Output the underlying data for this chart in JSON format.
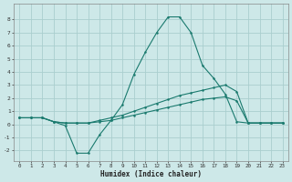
{
  "xlabel": "Humidex (Indice chaleur)",
  "bg_color": "#cde8e8",
  "grid_color": "#aacece",
  "line_color": "#1a7a6e",
  "xlim": [
    -0.5,
    23.5
  ],
  "ylim": [
    -2.8,
    9.2
  ],
  "xticks": [
    0,
    1,
    2,
    3,
    4,
    5,
    6,
    7,
    8,
    9,
    10,
    11,
    12,
    13,
    14,
    15,
    16,
    17,
    18,
    19,
    20,
    21,
    22,
    23
  ],
  "yticks": [
    -2,
    -1,
    0,
    1,
    2,
    3,
    4,
    5,
    6,
    7,
    8
  ],
  "line1_x": [
    0,
    1,
    2,
    3,
    4,
    5,
    6,
    7,
    8,
    9,
    10,
    11,
    12,
    13,
    14,
    15,
    16,
    17,
    18,
    19,
    20,
    21,
    22,
    23
  ],
  "line1_y": [
    0.5,
    0.5,
    0.5,
    0.2,
    -0.1,
    -2.2,
    -2.2,
    -0.8,
    0.3,
    1.5,
    3.8,
    5.5,
    7.0,
    8.2,
    8.2,
    7.0,
    4.5,
    3.5,
    2.3,
    0.2,
    0.1,
    0.1,
    0.1,
    0.1
  ],
  "line2_x": [
    0,
    1,
    2,
    3,
    4,
    5,
    6,
    7,
    8,
    9,
    10,
    11,
    12,
    13,
    14,
    15,
    16,
    17,
    18,
    19,
    20,
    21,
    22,
    23
  ],
  "line2_y": [
    0.5,
    0.5,
    0.5,
    0.2,
    0.1,
    0.1,
    0.1,
    0.3,
    0.5,
    0.7,
    1.0,
    1.3,
    1.6,
    1.9,
    2.2,
    2.4,
    2.6,
    2.8,
    3.0,
    2.5,
    0.1,
    0.1,
    0.1,
    0.1
  ],
  "line3_x": [
    0,
    1,
    2,
    3,
    4,
    5,
    6,
    7,
    8,
    9,
    10,
    11,
    12,
    13,
    14,
    15,
    16,
    17,
    18,
    19,
    20,
    21,
    22,
    23
  ],
  "line3_y": [
    0.5,
    0.5,
    0.5,
    0.2,
    0.1,
    0.1,
    0.1,
    0.2,
    0.3,
    0.5,
    0.7,
    0.9,
    1.1,
    1.3,
    1.5,
    1.7,
    1.9,
    2.0,
    2.1,
    1.8,
    0.1,
    0.1,
    0.1,
    0.1
  ]
}
